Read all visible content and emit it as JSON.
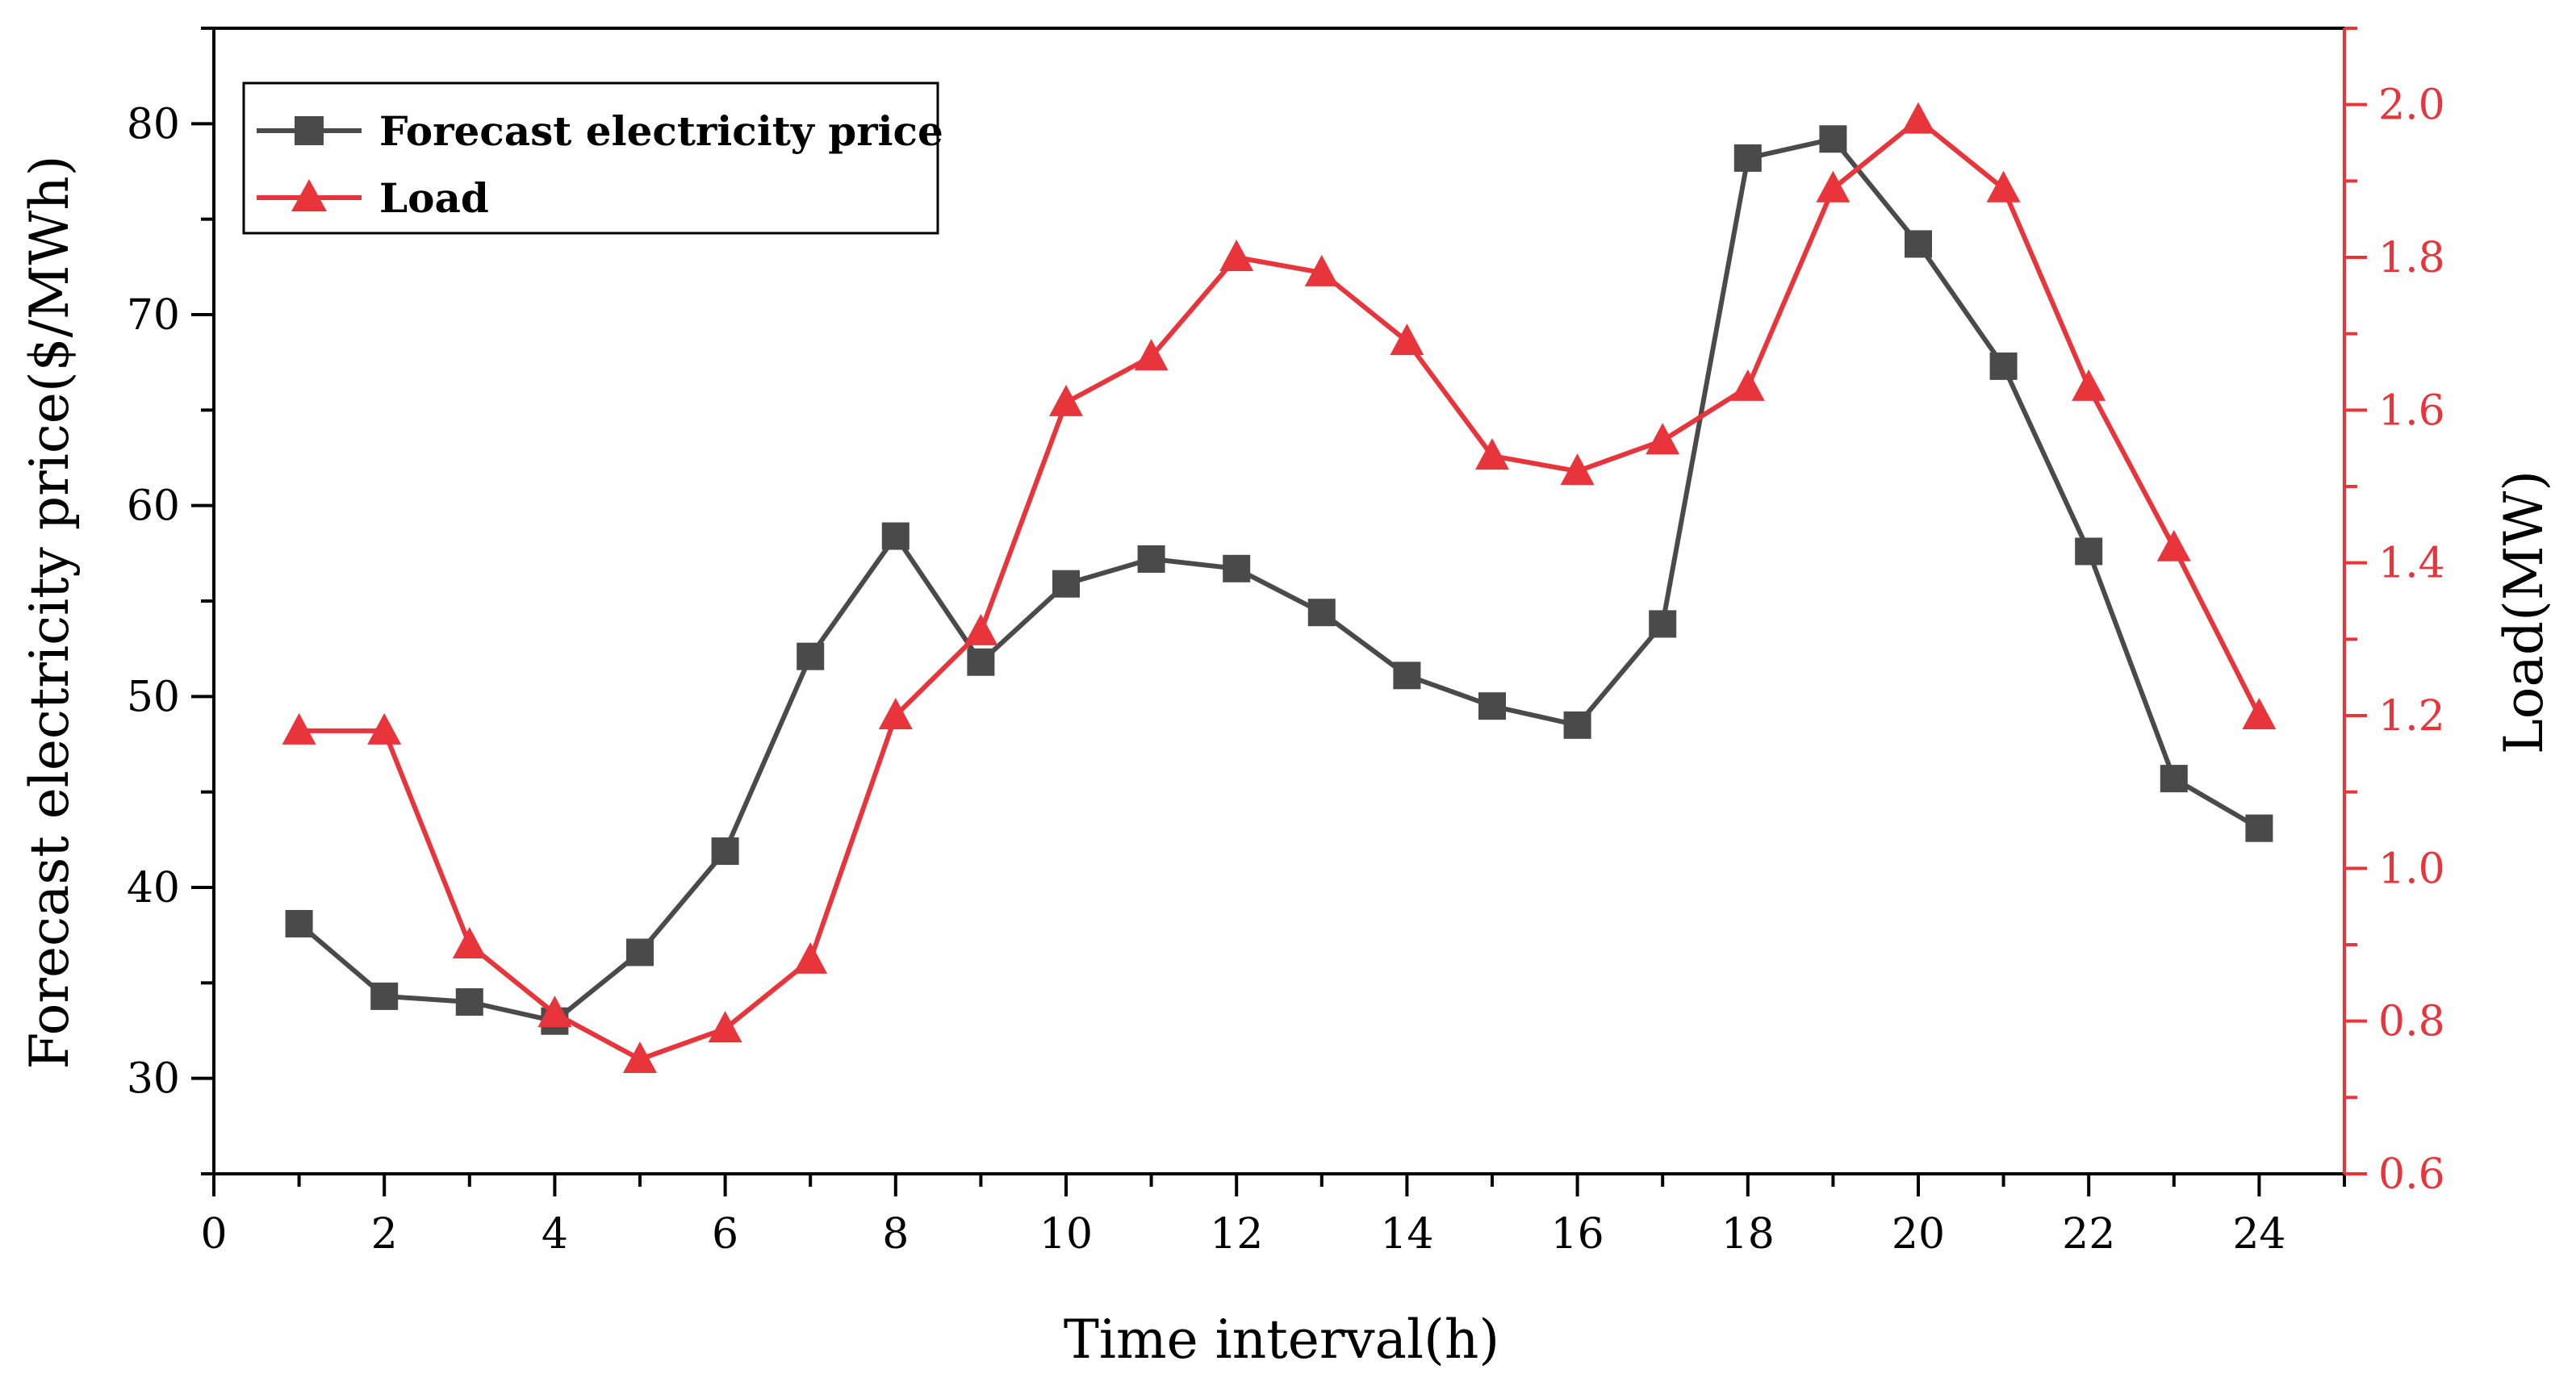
{
  "chart_data": {
    "type": "line",
    "xlabel": "Time interval(h)",
    "ylabel_left": "Forecast electricity price($/MWh)",
    "ylabel_right": "Load(MW)",
    "xlim": [
      0,
      25
    ],
    "ylim_left": [
      25,
      85
    ],
    "ylim_right": [
      0.6,
      2.1
    ],
    "x_ticks": [
      0,
      2,
      4,
      6,
      8,
      10,
      12,
      14,
      16,
      18,
      20,
      22,
      24
    ],
    "y_left_ticks": [
      30,
      40,
      50,
      60,
      70,
      80
    ],
    "y_right_ticks": [
      "0.6",
      "0.8",
      "1.0",
      "1.2",
      "1.4",
      "1.6",
      "1.8",
      "2.0"
    ],
    "grid": false,
    "legend_position": "top-left",
    "x": [
      1,
      2,
      3,
      4,
      5,
      6,
      7,
      8,
      9,
      10,
      11,
      12,
      13,
      14,
      15,
      16,
      17,
      18,
      19,
      20,
      21,
      22,
      23,
      24
    ],
    "series": [
      {
        "name": "Forecast electricity price",
        "axis": "left",
        "color": "#4a4a4a",
        "marker": "square",
        "values": [
          38.1,
          34.3,
          34.0,
          33.0,
          36.6,
          41.9,
          52.1,
          58.4,
          51.8,
          55.9,
          57.2,
          56.7,
          54.4,
          51.1,
          49.5,
          48.5,
          53.8,
          78.2,
          79.2,
          73.7,
          67.3,
          57.6,
          45.7,
          43.1
        ]
      },
      {
        "name": "Load",
        "axis": "right",
        "color": "#e8343b",
        "marker": "triangle",
        "values": [
          1.18,
          1.18,
          0.9,
          0.81,
          0.75,
          0.79,
          0.88,
          1.2,
          1.31,
          1.61,
          1.67,
          1.8,
          1.78,
          1.69,
          1.54,
          1.52,
          1.56,
          1.63,
          1.89,
          1.98,
          1.89,
          1.63,
          1.42,
          1.2
        ]
      }
    ]
  }
}
